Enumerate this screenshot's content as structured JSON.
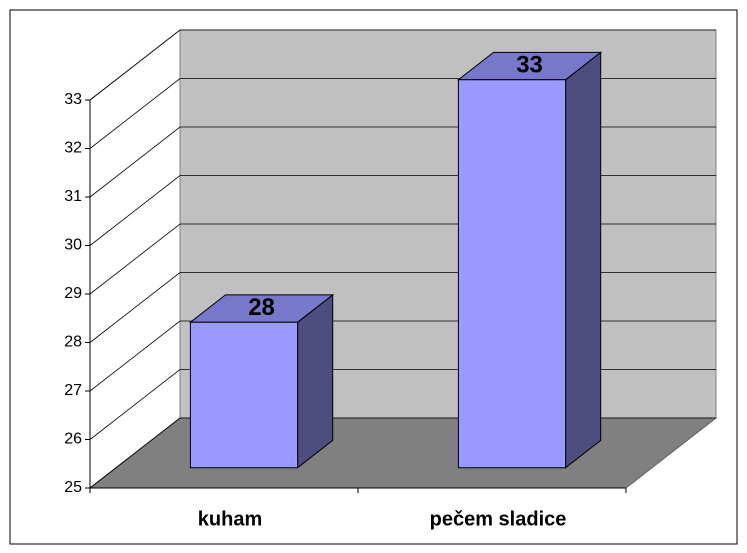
{
  "chart_data": {
    "type": "bar3d",
    "categories": [
      "kuham",
      "pečem sladice"
    ],
    "values": [
      28,
      33
    ],
    "color": "#9999ff",
    "ylim": [
      25,
      33
    ],
    "yticks": [
      25,
      26,
      27,
      28,
      29,
      30,
      31,
      32,
      33
    ],
    "grid": true
  }
}
